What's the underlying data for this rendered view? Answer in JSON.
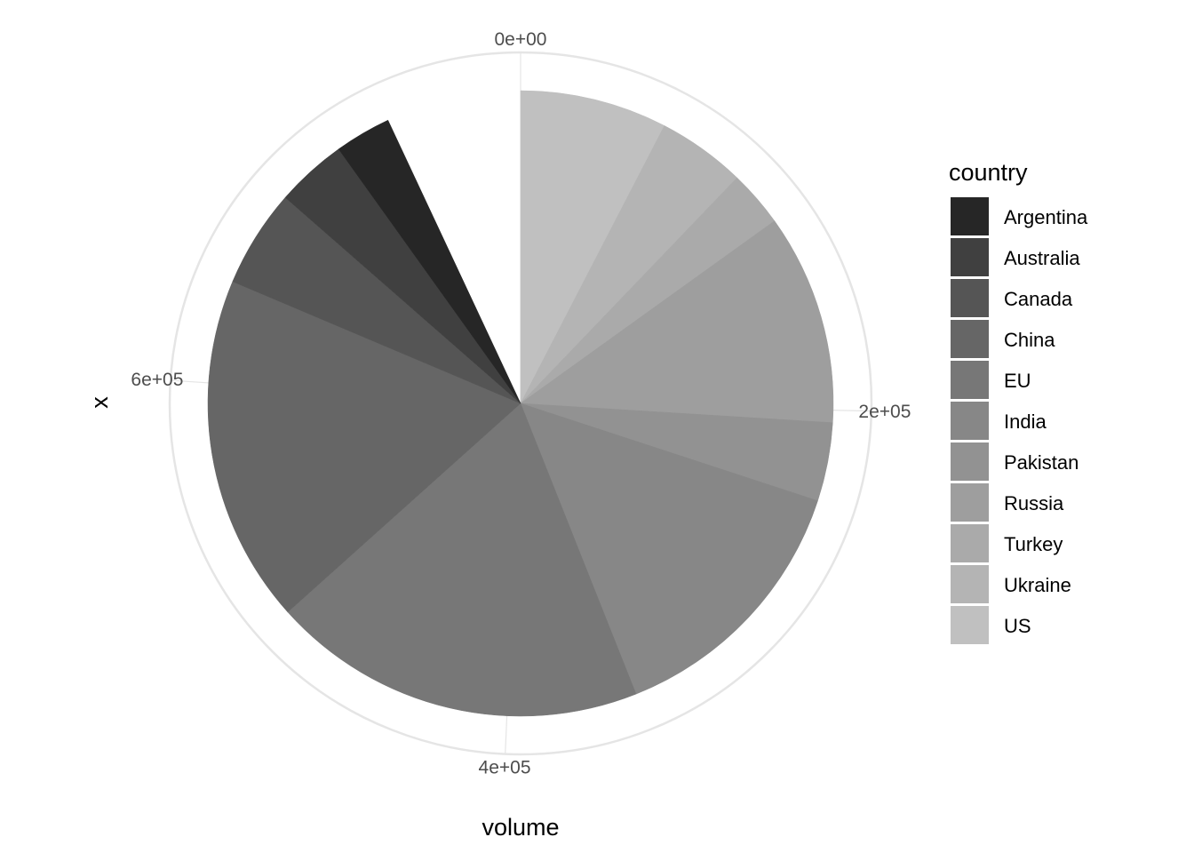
{
  "chart_data": {
    "type": "pie",
    "coord": "polar",
    "xlabel": "volume",
    "ylabel": "x",
    "legend": {
      "title": "country",
      "position": "right"
    },
    "axis_range": [
      0,
      789000
    ],
    "radial_ticks": [
      {
        "value": 0,
        "label": "0e+00"
      },
      {
        "value": 200000,
        "label": "2e+05"
      },
      {
        "value": 400000,
        "label": "4e+05"
      },
      {
        "value": 600000,
        "label": "6e+05"
      }
    ],
    "grid": true,
    "slices": [
      {
        "name": "Argentina",
        "value": 23000,
        "color": "#262626"
      },
      {
        "name": "Australia",
        "value": 29000,
        "color": "#404040"
      },
      {
        "name": "Canada",
        "value": 40000,
        "color": "#555555"
      },
      {
        "name": "China",
        "value": 142000,
        "color": "#666666"
      },
      {
        "name": "EU",
        "value": 153000,
        "color": "#777777"
      },
      {
        "name": "India",
        "value": 110000,
        "color": "#878787"
      },
      {
        "name": "Pakistan",
        "value": 32000,
        "color": "#929292"
      },
      {
        "name": "Russia",
        "value": 86000,
        "color": "#9e9e9e"
      },
      {
        "name": "Turkey",
        "value": 23000,
        "color": "#aaaaaa"
      },
      {
        "name": "Ukraine",
        "value": 36000,
        "color": "#b4b4b4"
      },
      {
        "name": "US",
        "value": 60000,
        "color": "#c0c0c0"
      }
    ]
  }
}
